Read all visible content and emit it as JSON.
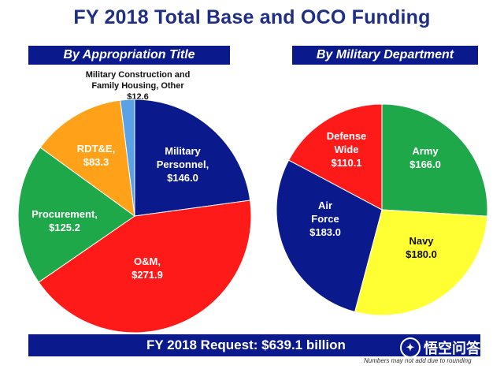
{
  "title": "FY 2018 Total Base and OCO Funding",
  "left_header": "By Appropriation Title",
  "right_header": "By Military Department",
  "total_label": "FY 2018 Request:  $639.1 billion",
  "footnote": "Numbers may not add due to rounding",
  "watermark": "悟空问答",
  "callout": {
    "line1": "Military Construction and",
    "line2": "Family Housing, Other",
    "value": "$12.6"
  },
  "colors": {
    "navy_band": "#0a1a8c",
    "title_blue": "#1f2f86",
    "blue": "#0a1a8c",
    "red": "#ff1a1a",
    "green": "#1ea84a",
    "orange": "#ffa21a",
    "yellow": "#ffff33",
    "light_blue": "#5aa2e6"
  },
  "chart_data": [
    {
      "type": "pie",
      "title": "By Appropriation Title",
      "slices": [
        {
          "label": "Military Personnel,",
          "value": 146.0,
          "value_label": "$146.0",
          "color": "#0a1a8c",
          "text_color": "#ffffff"
        },
        {
          "label": "O&M,",
          "value": 271.9,
          "value_label": "$271.9",
          "color": "#ff1a1a",
          "text_color": "#ffffff"
        },
        {
          "label": "Procurement,",
          "value": 125.2,
          "value_label": "$125.2",
          "color": "#1ea84a",
          "text_color": "#ffffff"
        },
        {
          "label": "RDT&E,",
          "value": 83.3,
          "value_label": "$83.3",
          "color": "#ffa21a",
          "text_color": "#ffffff"
        },
        {
          "label": "Military Construction and Family Housing, Other",
          "value": 12.6,
          "value_label": "$12.6",
          "color": "#5aa2e6",
          "text_color": "#111111"
        }
      ]
    },
    {
      "type": "pie",
      "title": "By Military Department",
      "slices": [
        {
          "label": "Army",
          "value": 166.0,
          "value_label": "$166.0",
          "color": "#1ea84a",
          "text_color": "#ffffff"
        },
        {
          "label": "Navy",
          "value": 180.0,
          "value_label": "$180.0",
          "color": "#ffff33",
          "text_color": "#111111"
        },
        {
          "label": "Air Force",
          "value": 183.0,
          "value_label": "$183.0",
          "color": "#0a1a8c",
          "text_color": "#ffffff"
        },
        {
          "label": "Defense Wide",
          "value": 110.1,
          "value_label": "$110.1",
          "color": "#ff1a1a",
          "text_color": "#ffffff"
        }
      ]
    }
  ]
}
